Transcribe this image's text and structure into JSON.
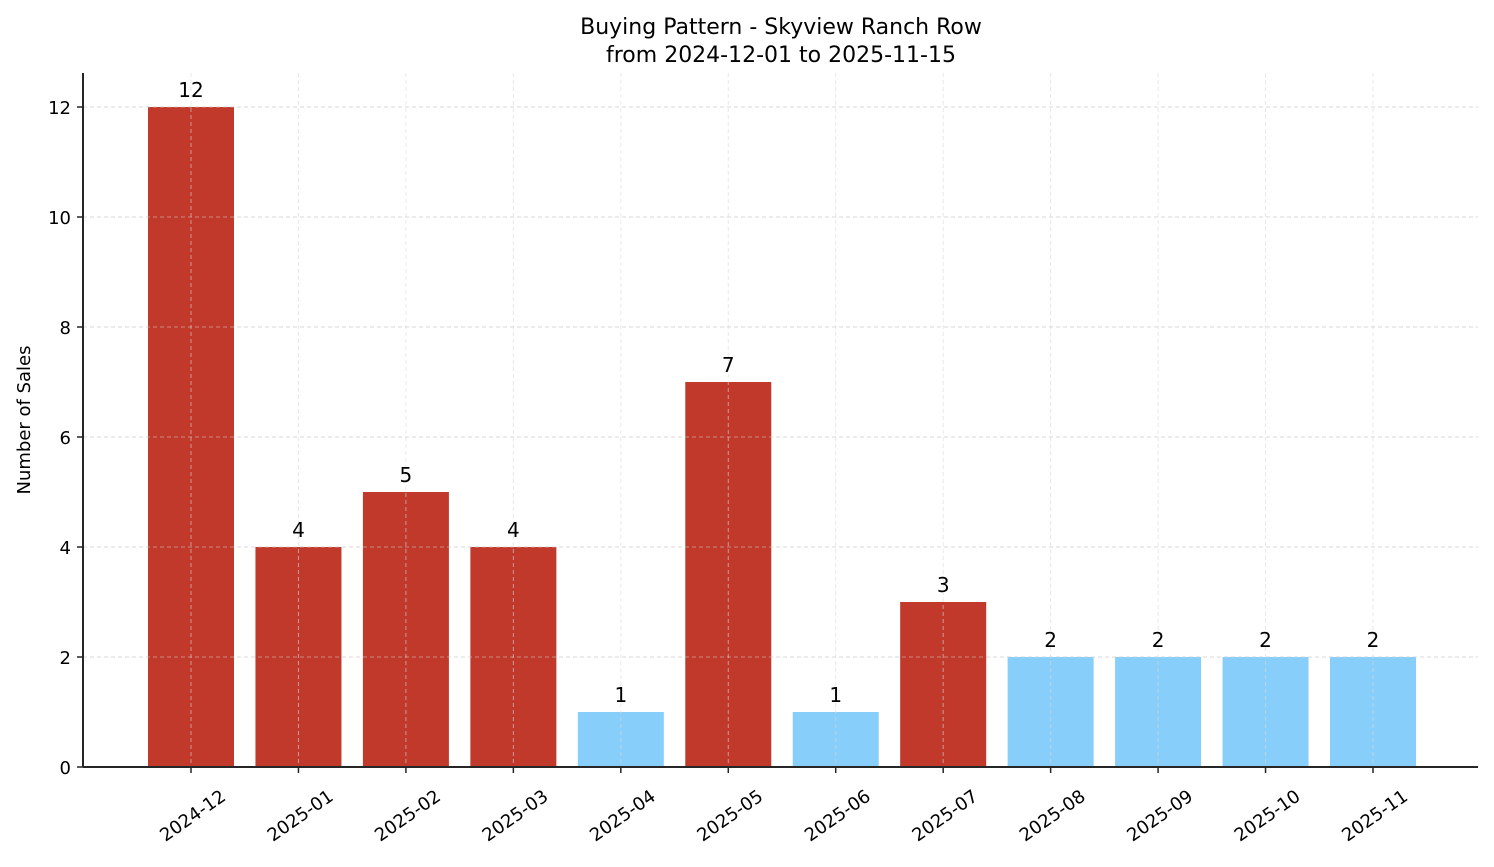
{
  "chart_data": {
    "type": "bar",
    "title": "Buying Pattern - Skyview Ranch Row",
    "subtitle": "from 2024-12-01 to 2025-11-15",
    "xlabel": "",
    "ylabel": "Number of Sales",
    "ylim": [
      0,
      12.6
    ],
    "yticks": [
      0,
      2,
      4,
      6,
      8,
      10,
      12
    ],
    "grid": true,
    "grid_style": "dashed",
    "legend": null,
    "categories": [
      "2024-12",
      "2025-01",
      "2025-02",
      "2025-03",
      "2025-04",
      "2025-05",
      "2025-06",
      "2025-07",
      "2025-08",
      "2025-09",
      "2025-10",
      "2025-11"
    ],
    "values": [
      12,
      4,
      5,
      4,
      1,
      7,
      1,
      3,
      2,
      2,
      2,
      2
    ],
    "bar_colors": [
      "#C0392B",
      "#C0392B",
      "#C0392B",
      "#C0392B",
      "#87CEFA",
      "#C0392B",
      "#87CEFA",
      "#C0392B",
      "#87CEFA",
      "#87CEFA",
      "#87CEFA",
      "#87CEFA"
    ],
    "data_labels": [
      "12",
      "4",
      "5",
      "4",
      "1",
      "7",
      "1",
      "3",
      "2",
      "2",
      "2",
      "2"
    ],
    "colors": {
      "high": "#C0392B",
      "low": "#87CEFA",
      "grid": "#d9d9d9",
      "axis": "#262626"
    }
  }
}
